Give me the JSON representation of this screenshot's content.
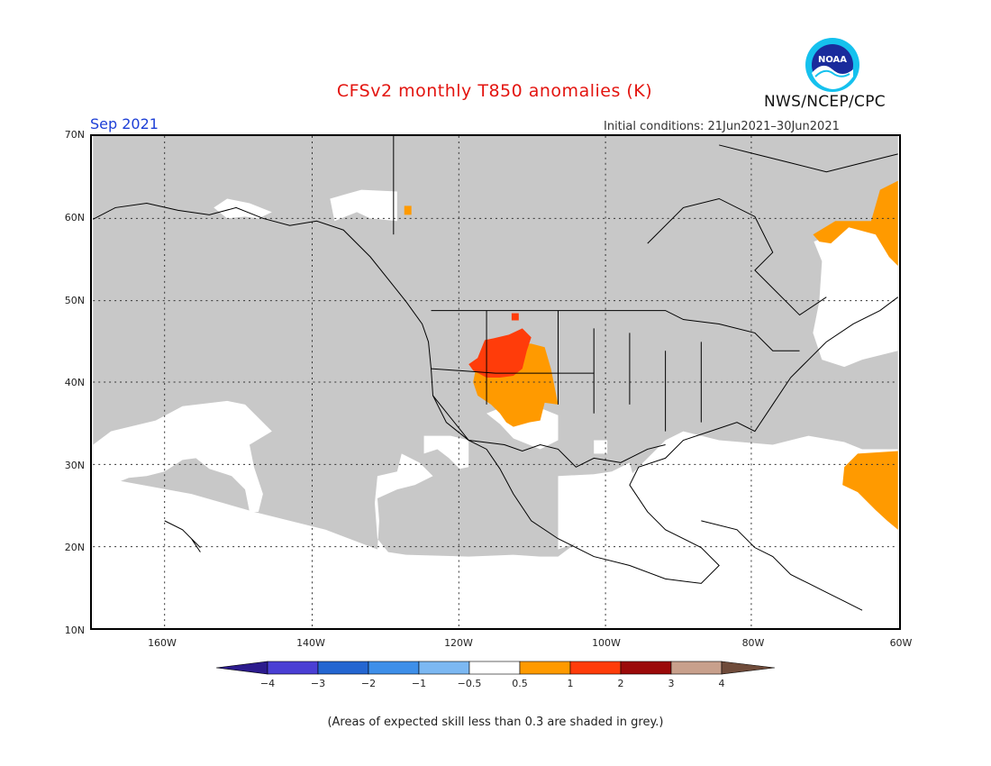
{
  "header": {
    "title": "CFSv2 monthly T850 anomalies (K)",
    "valid_month": "Sep 2021",
    "initial_conditions": "Initial conditions: 21Jun2021–30Jun2021",
    "agency": "NWS/NCEP/CPC",
    "logo_text": "NOAA"
  },
  "map": {
    "lat_labels": [
      "70N",
      "60N",
      "50N",
      "40N",
      "30N",
      "20N",
      "10N"
    ],
    "lon_labels": [
      "160W",
      "140W",
      "120W",
      "100W",
      "80W",
      "60W"
    ],
    "lat_range": [
      10,
      70
    ],
    "lon_range": [
      -170,
      -60
    ],
    "grid": "dotted",
    "skill_mask_color": "#c8c8c8"
  },
  "legend": {
    "labels": [
      "−4",
      "−3",
      "−2",
      "−1",
      "−0.5",
      "0.5",
      "1",
      "2",
      "3",
      "4"
    ],
    "colors": [
      "#2c1b8d",
      "#4a3fd4",
      "#2466d1",
      "#3e8fe9",
      "#7cb8f2",
      "#ffffff",
      "#ff9a00",
      "#ff3c0a",
      "#9b0a0a",
      "#c8a08c",
      "#6f4b3a"
    ]
  },
  "footnote": "(Areas of expected skill less than 0.3 are shaded in grey.)",
  "colors": {
    "title": "#e3140f",
    "month": "#1d3fd6",
    "positive_1": "#ff9a00",
    "positive_2": "#ff3c0a",
    "grey_mask": "#c8c8c8"
  }
}
